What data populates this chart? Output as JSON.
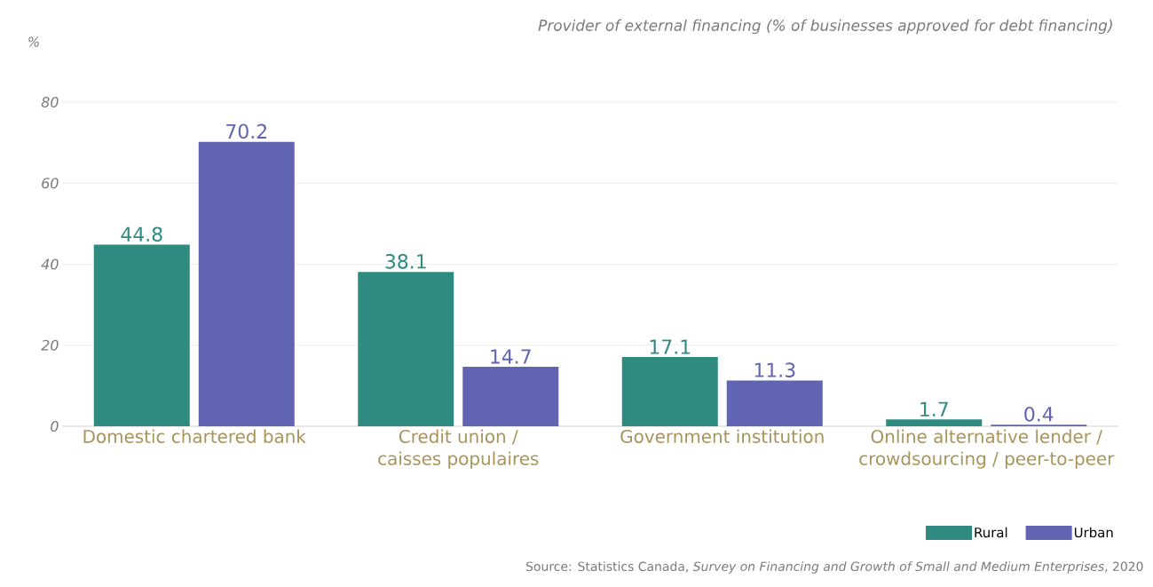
{
  "chart_data": {
    "type": "bar",
    "title": "Provider of external financing (% of businesses approved for debt financing)",
    "ylabel": "%",
    "categories": [
      "Domestic chartered bank",
      "Credit union / caisses populaires",
      "Government institution",
      "Online alternative lender / crowdsourcing / peer-to-peer"
    ],
    "series": [
      {
        "name": "Rural",
        "color": "#2f8a80",
        "values": [
          44.8,
          38.1,
          17.1,
          1.7
        ]
      },
      {
        "name": "Urban",
        "color": "#6163b3",
        "values": [
          70.2,
          14.7,
          11.3,
          0.4
        ]
      }
    ],
    "ylim": [
      0,
      80
    ],
    "yticks": [
      0,
      20,
      40,
      60,
      80
    ],
    "grid": "y",
    "data_labels": true,
    "legend": "bottom right",
    "annotations": [
      "Source: Statistics Canada, *Survey on Financing and Growth of Small and Medium Enterprises*, 2020"
    ]
  }
}
